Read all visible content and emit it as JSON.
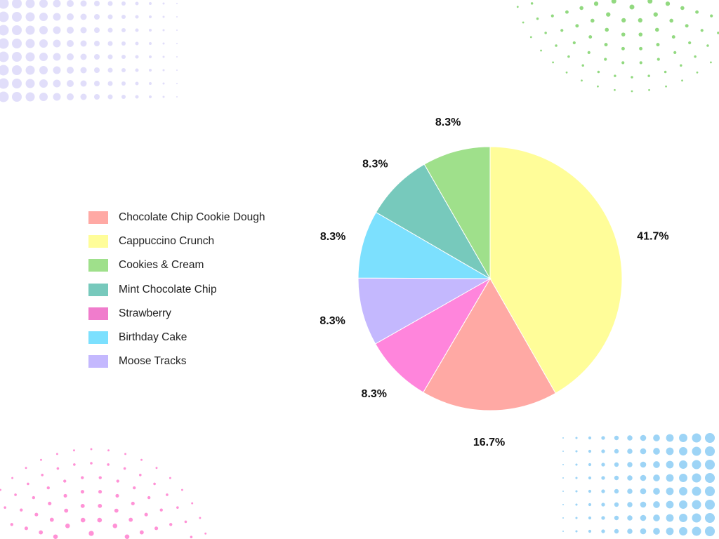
{
  "chart_data": {
    "type": "pie",
    "title": "",
    "slices": [
      {
        "name": "Cappuccino Crunch",
        "value": 41.7,
        "label": "41.7%",
        "color": "#fffd99"
      },
      {
        "name": "Chocolate Chip Cookie Dough",
        "value": 16.7,
        "label": "16.7%",
        "color": "#ffa9a4"
      },
      {
        "name": "Strawberry",
        "value": 8.3,
        "label": "8.3%",
        "color": "#ff85dc"
      },
      {
        "name": "Moose Tracks",
        "value": 8.3,
        "label": "8.3%",
        "color": "#c4b8fe"
      },
      {
        "name": "Birthday Cake",
        "value": 8.3,
        "label": "8.3%",
        "color": "#7ce0fe"
      },
      {
        "name": "Mint Chocolate Chip",
        "value": 8.3,
        "label": "8.3%",
        "color": "#77c9bc"
      },
      {
        "name": "Cookies & Cream",
        "value": 8.3,
        "label": "8.3%",
        "color": "#9fe08b"
      }
    ],
    "legend_placement": "left",
    "legend": [
      {
        "label": "Chocolate Chip Cookie Dough",
        "color": "#ffa9a4"
      },
      {
        "label": "Cappuccino Crunch",
        "color": "#fffd99"
      },
      {
        "label": "Cookies & Cream",
        "color": "#9fe08b"
      },
      {
        "label": "Mint Chocolate Chip",
        "color": "#77c9bc"
      },
      {
        "label": "Strawberry",
        "color": "#f07ccc"
      },
      {
        "label": "Birthday Cake",
        "color": "#7ce0fe"
      },
      {
        "label": "Moose Tracks",
        "color": "#c4b8fe"
      }
    ]
  },
  "decor": {
    "dot_colors": [
      "#c9c2f5",
      "#7fd26a",
      "#ff7fcf",
      "#5cb8f0"
    ]
  }
}
